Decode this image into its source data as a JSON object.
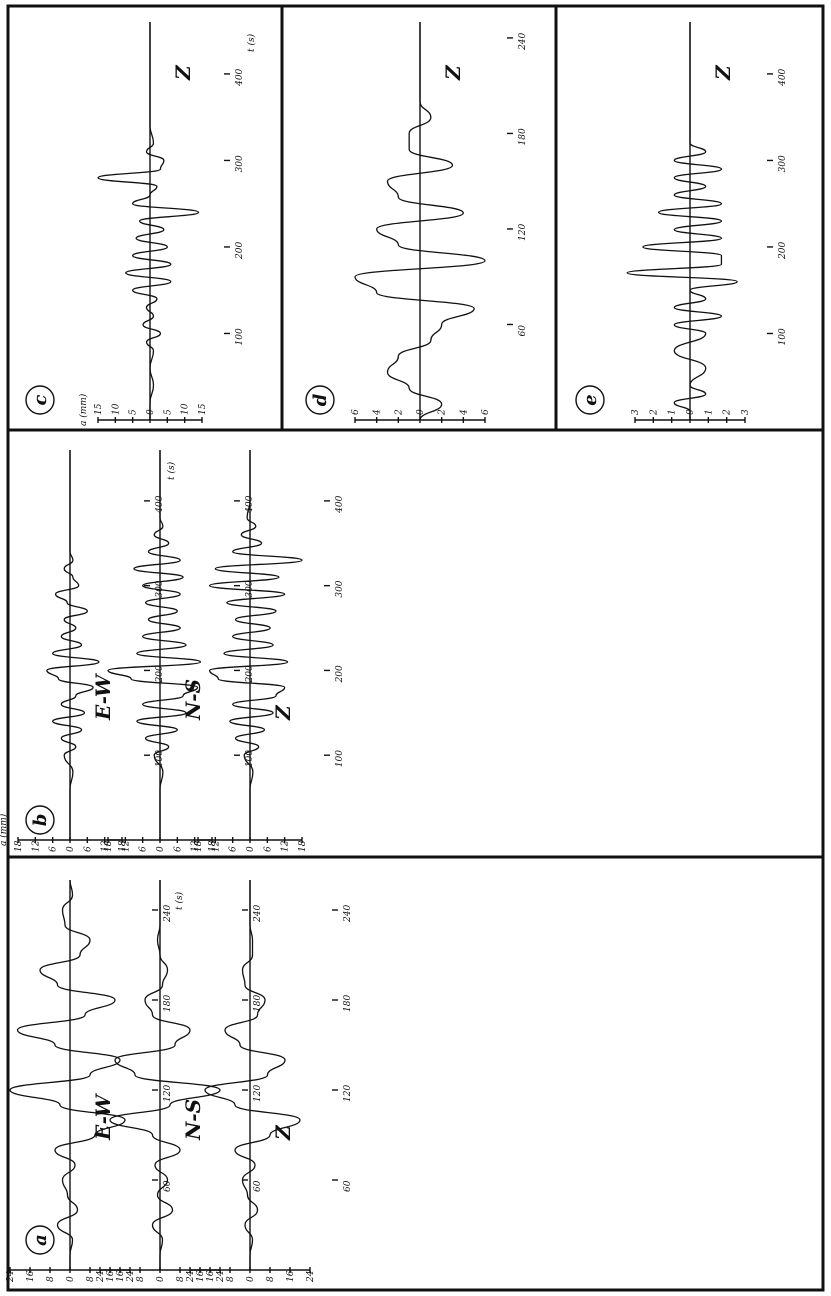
{
  "figure": {
    "colors": {
      "ink": "#111111",
      "paper": "#ffffff"
    }
  },
  "chart_data": [
    {
      "type": "line",
      "panel": "a",
      "component": "E-W",
      "axis_unit_label": "a\n(mm)",
      "time_label": "t\n(s)",
      "ylim": [
        -24,
        24
      ],
      "yticks": [
        "24",
        "16",
        "8",
        "0",
        "8",
        "16",
        "24"
      ],
      "xlim": [
        0,
        260
      ],
      "xticks": [
        {
          "t": 60,
          "label": "60"
        },
        {
          "t": 120,
          "label": "120"
        },
        {
          "t": 180,
          "label": "180"
        },
        {
          "t": 240,
          "label": "240"
        }
      ],
      "x": [
        0,
        10,
        20,
        30,
        40,
        50,
        60,
        70,
        80,
        90,
        100,
        110,
        120,
        130,
        140,
        150,
        160,
        170,
        180,
        190,
        200,
        210,
        220,
        230,
        240,
        250,
        260
      ],
      "y": [
        0,
        0,
        1,
        -5,
        3,
        -1,
        -3,
        2,
        -6,
        10,
        22,
        -4,
        -24,
        8,
        20,
        -6,
        -21,
        6,
        18,
        -5,
        -12,
        4,
        8,
        -2,
        -3,
        1,
        0
      ]
    },
    {
      "type": "line",
      "panel": "a",
      "component": "N-S",
      "ylim": [
        -24,
        24
      ],
      "yticks": [
        "24",
        "16",
        "8",
        "0",
        "8",
        "16",
        "24"
      ],
      "xlim": [
        0,
        260
      ],
      "xticks": [
        {
          "t": 60,
          "label": "60"
        },
        {
          "t": 120,
          "label": "120"
        },
        {
          "t": 180,
          "label": "180"
        },
        {
          "t": 240,
          "label": "240"
        }
      ],
      "x": [
        0,
        10,
        20,
        30,
        40,
        50,
        60,
        70,
        80,
        90,
        100,
        110,
        120,
        130,
        140,
        150,
        160,
        170,
        180,
        190,
        200,
        210,
        220,
        230,
        240,
        250,
        260
      ],
      "y": [
        0,
        0,
        1,
        -3,
        5,
        -1,
        3,
        -2,
        8,
        -3,
        -20,
        4,
        24,
        -10,
        -18,
        6,
        12,
        -3,
        -6,
        1,
        3,
        0,
        -1,
        0,
        0,
        0,
        0
      ]
    },
    {
      "type": "line",
      "panel": "a",
      "component": "Z",
      "ylim": [
        -24,
        24
      ],
      "yticks": [
        "24",
        "16",
        "8",
        "0",
        "8",
        "16",
        "24"
      ],
      "xlim": [
        0,
        260
      ],
      "xticks": [
        {
          "t": 60,
          "label": "60"
        },
        {
          "t": 120,
          "label": "120"
        },
        {
          "t": 180,
          "label": "180"
        },
        {
          "t": 240,
          "label": "240"
        }
      ],
      "x": [
        0,
        10,
        20,
        30,
        40,
        50,
        60,
        70,
        80,
        90,
        100,
        110,
        120,
        130,
        140,
        150,
        160,
        170,
        180,
        190,
        200,
        210,
        220,
        230,
        240,
        250,
        260
      ],
      "y": [
        0,
        0,
        1,
        -2,
        3,
        -1,
        -3,
        2,
        -6,
        8,
        20,
        -6,
        -18,
        7,
        14,
        -4,
        -10,
        3,
        6,
        -2,
        -3,
        1,
        1,
        0,
        0,
        0,
        0
      ]
    },
    {
      "type": "line",
      "panel": "b",
      "component": "E-W",
      "axis_unit_label": "a\n(mm)",
      "time_label": "t\n(s)",
      "ylim": [
        -18,
        18
      ],
      "yticks": [
        "18",
        "12",
        "6",
        "0",
        "6",
        "12",
        "18"
      ],
      "xlim": [
        0,
        460
      ],
      "xticks": [
        {
          "t": 100,
          "label": "100"
        },
        {
          "t": 200,
          "label": "200"
        },
        {
          "t": 300,
          "label": "300"
        },
        {
          "t": 400,
          "label": "400"
        }
      ],
      "x": [
        0,
        20,
        40,
        60,
        80,
        100,
        110,
        120,
        130,
        140,
        150,
        160,
        170,
        180,
        190,
        200,
        210,
        220,
        230,
        240,
        250,
        260,
        270,
        280,
        290,
        300,
        310,
        320,
        330,
        340,
        360,
        380,
        400,
        420,
        440,
        460
      ],
      "y": [
        0,
        0,
        0,
        0,
        1,
        -2,
        2,
        -3,
        4,
        -6,
        5,
        -3,
        2,
        8,
        -4,
        -8,
        10,
        -6,
        4,
        -3,
        2,
        -2,
        6,
        -1,
        -5,
        3,
        1,
        -2,
        1,
        0,
        0,
        0,
        0,
        0,
        0,
        0
      ]
    },
    {
      "type": "line",
      "panel": "b",
      "component": "N-S",
      "ylim": [
        -18,
        18
      ],
      "yticks": [
        "18",
        "12",
        "6",
        "0",
        "6",
        "12",
        "18"
      ],
      "xlim": [
        0,
        460
      ],
      "xticks": [
        {
          "t": 100,
          "label": "100"
        },
        {
          "t": 200,
          "label": "200"
        },
        {
          "t": 300,
          "label": "300"
        },
        {
          "t": 400,
          "label": "400"
        }
      ],
      "x": [
        0,
        20,
        40,
        60,
        80,
        100,
        110,
        120,
        130,
        140,
        150,
        160,
        170,
        180,
        190,
        200,
        210,
        220,
        230,
        240,
        250,
        260,
        270,
        280,
        290,
        300,
        310,
        320,
        330,
        340,
        350,
        360,
        370,
        380,
        400,
        420,
        440,
        460
      ],
      "y": [
        0,
        0,
        0,
        0,
        1,
        -2,
        3,
        -5,
        6,
        -8,
        9,
        -6,
        8,
        13,
        -10,
        -18,
        14,
        -8,
        9,
        -6,
        7,
        -4,
        6,
        -5,
        7,
        -6,
        8,
        -9,
        7,
        -4,
        3,
        -2,
        1,
        0,
        0,
        0,
        0,
        0
      ]
    },
    {
      "type": "line",
      "panel": "b",
      "component": "Z",
      "ylim": [
        -18,
        18
      ],
      "yticks": [
        "18",
        "12",
        "6",
        "0",
        "6",
        "12",
        "18"
      ],
      "xlim": [
        0,
        460
      ],
      "xticks": [
        {
          "t": 100,
          "label": "100"
        },
        {
          "t": 200,
          "label": "200"
        },
        {
          "t": 300,
          "label": "300"
        },
        {
          "t": 400,
          "label": "400"
        }
      ],
      "x": [
        0,
        20,
        40,
        60,
        80,
        100,
        110,
        120,
        130,
        140,
        150,
        160,
        170,
        180,
        190,
        200,
        210,
        220,
        230,
        240,
        250,
        260,
        270,
        280,
        290,
        300,
        310,
        320,
        330,
        340,
        350,
        360,
        370,
        380,
        400,
        420,
        440,
        460
      ],
      "y": [
        0,
        0,
        0,
        0,
        1,
        -2,
        3,
        -5,
        5,
        -7,
        8,
        -6,
        9,
        12,
        -11,
        -14,
        13,
        -9,
        8,
        -6,
        7,
        -5,
        9,
        -8,
        12,
        -14,
        10,
        -12,
        18,
        -6,
        4,
        -3,
        2,
        -1,
        0,
        0,
        0,
        0
      ]
    },
    {
      "type": "line",
      "panel": "c",
      "component": "Z",
      "axis_unit_label": "a\n(mm)",
      "time_label": "t\n(s)",
      "ylim": [
        -15,
        15
      ],
      "yticks": [
        "15",
        "10",
        "5",
        "0",
        "5",
        "10",
        "15"
      ],
      "xlim": [
        0,
        460
      ],
      "xticks": [
        {
          "t": 100,
          "label": "100"
        },
        {
          "t": 200,
          "label": "200"
        },
        {
          "t": 300,
          "label": "300"
        },
        {
          "t": 400,
          "label": "400"
        }
      ],
      "x": [
        0,
        20,
        40,
        60,
        80,
        90,
        100,
        110,
        120,
        130,
        140,
        150,
        160,
        170,
        180,
        190,
        200,
        210,
        220,
        230,
        240,
        250,
        260,
        270,
        280,
        290,
        300,
        310,
        320,
        340,
        360,
        380,
        400,
        420,
        440,
        460
      ],
      "y": [
        0,
        0,
        1,
        0,
        1,
        -1,
        3,
        -2,
        1,
        -1,
        2,
        -5,
        6,
        -7,
        6,
        -5,
        5,
        -4,
        4,
        -3,
        14,
        -5,
        0,
        2,
        -15,
        3,
        4,
        -1,
        1,
        0,
        0,
        0,
        0,
        0,
        0,
        0
      ]
    },
    {
      "type": "line",
      "panel": "d",
      "component": "Z",
      "ylim": [
        -6,
        6
      ],
      "yticks": [
        "6",
        "4",
        "2",
        "0",
        "2",
        "4",
        "6"
      ],
      "xlim": [
        0,
        250
      ],
      "xticks": [
        {
          "t": 60,
          "label": "60"
        },
        {
          "t": 120,
          "label": "120"
        },
        {
          "t": 180,
          "label": "180"
        },
        {
          "t": 240,
          "label": "240"
        }
      ],
      "x": [
        0,
        10,
        20,
        30,
        40,
        50,
        60,
        70,
        80,
        90,
        100,
        110,
        120,
        130,
        140,
        150,
        160,
        170,
        180,
        190,
        200,
        210,
        220,
        230,
        240,
        250
      ],
      "y": [
        0,
        2,
        -1,
        -3,
        -2,
        1,
        2,
        5,
        -4,
        -6,
        6,
        -2,
        -4,
        4,
        -2,
        -3,
        3,
        -1,
        -1,
        1,
        0,
        0,
        0,
        0,
        0,
        0
      ]
    },
    {
      "type": "line",
      "panel": "e",
      "component": "Z",
      "ylim": [
        -3.5,
        3.5
      ],
      "yticks": [
        "3",
        "2",
        "1",
        "0",
        "1",
        "2",
        "3"
      ],
      "xlim": [
        0,
        460
      ],
      "xticks": [
        {
          "t": 100,
          "label": "100"
        },
        {
          "t": 200,
          "label": "200"
        },
        {
          "t": 300,
          "label": "300"
        },
        {
          "t": 400,
          "label": "400"
        }
      ],
      "x": [
        0,
        10,
        20,
        30,
        40,
        60,
        80,
        100,
        110,
        120,
        130,
        140,
        150,
        160,
        170,
        180,
        190,
        200,
        210,
        220,
        230,
        240,
        250,
        260,
        270,
        280,
        290,
        300,
        310,
        320,
        330,
        340,
        350,
        360,
        380,
        400,
        420,
        440,
        460
      ],
      "y": [
        0,
        0,
        -1,
        1,
        0,
        1,
        -1,
        1,
        -1,
        2,
        -1,
        1,
        0,
        3,
        -4,
        2,
        2,
        -3,
        2,
        -1,
        2,
        -2,
        2,
        -1,
        1,
        -1,
        2,
        -1,
        1,
        0,
        0,
        0,
        0,
        0,
        0,
        0,
        0,
        0,
        0
      ]
    }
  ]
}
